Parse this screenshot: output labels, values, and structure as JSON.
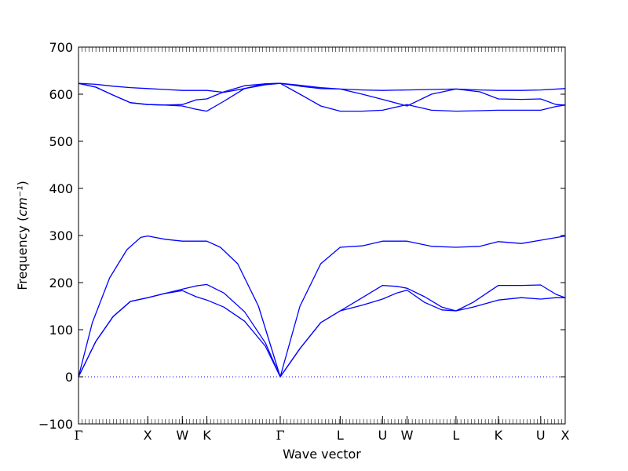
{
  "chart_data": {
    "type": "line",
    "xlabel": "Wave vector",
    "ylabel": "Frequency",
    "ylabel_unit": "cm⁻¹",
    "ylim": [
      -100,
      700
    ],
    "yticks": [
      -100,
      0,
      100,
      200,
      300,
      400,
      500,
      600,
      700
    ],
    "kpoints": [
      {
        "label": "Γ",
        "pos": 0.0
      },
      {
        "label": "X",
        "pos": 1.0
      },
      {
        "label": "W",
        "pos": 1.5
      },
      {
        "label": "K",
        "pos": 1.854
      },
      {
        "label": "Γ",
        "pos": 2.915
      },
      {
        "label": "L",
        "pos": 3.781
      },
      {
        "label": "U",
        "pos": 4.393
      },
      {
        "label": "W",
        "pos": 4.747
      },
      {
        "label": "L",
        "pos": 5.454
      },
      {
        "label": "K",
        "pos": 6.066
      },
      {
        "label": "U",
        "pos": 6.678
      },
      {
        "label": "X",
        "pos": 7.032
      }
    ],
    "zero_line": {
      "y": 0,
      "style": "dotted",
      "color": "#0000ff"
    },
    "line_color": "#0000ff",
    "series": [
      {
        "x": [
          0,
          0.25,
          0.5,
          0.75,
          1.0,
          1.25,
          1.5,
          1.7,
          1.854,
          2.1,
          2.4,
          2.7,
          2.915,
          3.2,
          3.5,
          3.781,
          4.1,
          4.393,
          4.6,
          4.747,
          5.0,
          5.25,
          5.454,
          5.7,
          6.066,
          6.4,
          6.678,
          6.9,
          7.032
        ],
        "y": [
          0,
          75,
          128,
          160,
          168,
          177,
          183,
          170,
          163,
          148,
          118,
          65,
          0,
          60,
          115,
          140,
          152,
          165,
          178,
          184,
          158,
          142,
          140,
          148,
          163,
          168,
          165,
          168,
          168
        ]
      },
      {
        "x": [
          0,
          0.25,
          0.5,
          0.75,
          1.0,
          1.25,
          1.5,
          1.7,
          1.854,
          2.1,
          2.4,
          2.7,
          2.915,
          3.2,
          3.5,
          3.781,
          4.1,
          4.393,
          4.6,
          4.747,
          5.0,
          5.25,
          5.454,
          5.7,
          6.066,
          6.4,
          6.678,
          6.9,
          7.032
        ],
        "y": [
          0,
          75,
          128,
          160,
          168,
          177,
          186,
          193,
          196,
          178,
          138,
          72,
          0,
          60,
          115,
          140,
          168,
          194,
          192,
          188,
          170,
          148,
          140,
          158,
          194,
          194,
          195,
          175,
          168
        ]
      },
      {
        "x": [
          0,
          0.2,
          0.45,
          0.7,
          0.9,
          1.0,
          1.25,
          1.5,
          1.854,
          2.05,
          2.3,
          2.6,
          2.915,
          3.2,
          3.5,
          3.781,
          4.1,
          4.393,
          4.747,
          5.1,
          5.454,
          5.8,
          6.066,
          6.4,
          6.678,
          7.032
        ],
        "y": [
          0,
          115,
          210,
          270,
          296,
          299,
          292,
          288,
          288,
          275,
          240,
          150,
          0,
          150,
          240,
          275,
          278,
          288,
          288,
          277,
          275,
          277,
          287,
          283,
          290,
          299
        ]
      },
      {
        "x": [
          0,
          0.25,
          0.5,
          0.75,
          1.0,
          1.25,
          1.5,
          1.7,
          1.854,
          2.1,
          2.4,
          2.7,
          2.915,
          3.2,
          3.5,
          3.781,
          4.1,
          4.393,
          4.747,
          5.1,
          5.454,
          5.8,
          6.066,
          6.4,
          6.678,
          6.9,
          7.032
        ],
        "y": [
          623,
          615,
          598,
          582,
          578,
          577,
          575,
          568,
          564,
          585,
          612,
          622,
          623,
          600,
          575,
          564,
          564,
          566,
          578,
          566,
          564,
          565,
          566,
          566,
          566,
          574,
          577
        ]
      },
      {
        "x": [
          0,
          0.25,
          0.5,
          0.75,
          1.0,
          1.25,
          1.5,
          1.7,
          1.854,
          2.1,
          2.4,
          2.7,
          2.915,
          3.2,
          3.5,
          3.781,
          4.1,
          4.393,
          4.747,
          5.1,
          5.454,
          5.8,
          6.066,
          6.4,
          6.678,
          6.9,
          7.032
        ],
        "y": [
          623,
          615,
          598,
          582,
          578,
          577,
          578,
          588,
          590,
          605,
          618,
          622,
          623,
          617,
          612,
          611,
          600,
          589,
          575,
          600,
          611,
          605,
          590,
          589,
          590,
          578,
          577
        ]
      },
      {
        "x": [
          0,
          0.25,
          0.5,
          0.75,
          1.0,
          1.25,
          1.5,
          1.854,
          2.1,
          2.4,
          2.7,
          2.915,
          3.2,
          3.5,
          3.781,
          4.1,
          4.393,
          4.747,
          5.1,
          5.454,
          5.8,
          6.066,
          6.4,
          6.678,
          7.032
        ],
        "y": [
          623,
          621,
          617,
          614,
          612,
          610,
          608,
          608,
          604,
          612,
          620,
          623,
          619,
          614,
          611,
          609,
          608,
          609,
          610,
          611,
          609,
          608,
          608,
          609,
          612
        ]
      }
    ]
  }
}
